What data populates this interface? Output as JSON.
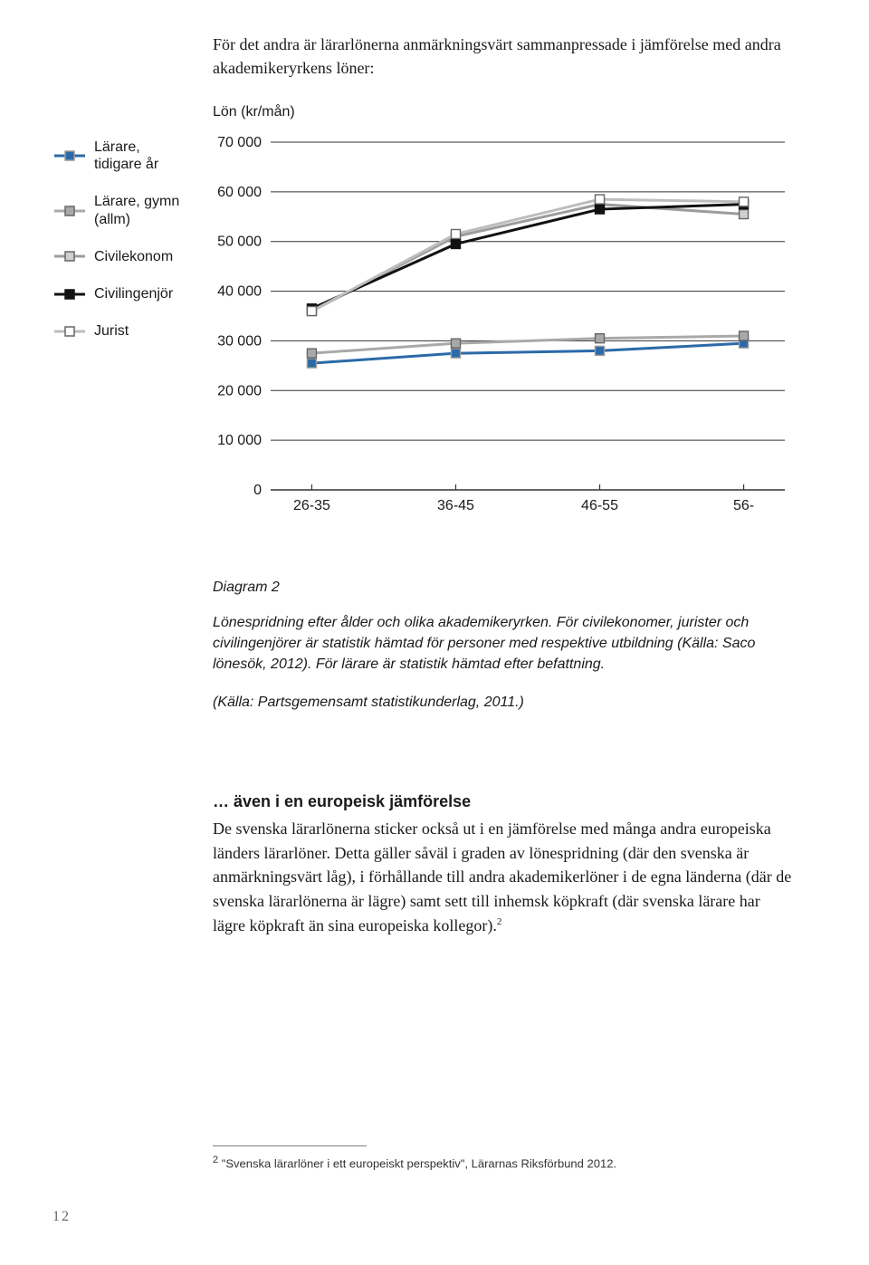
{
  "intro": "För det andra är lärarlönerna anmärkningsvärt sammanpressade i jämförelse med andra akademikeryrkens löner:",
  "chart": {
    "type": "line",
    "y_title": "Lön (kr/mån)",
    "ylim": [
      0,
      70000
    ],
    "ytick_step": 10000,
    "yticks": [
      "70 000",
      "60 000",
      "50 000",
      "40 000",
      "30 000",
      "20 000",
      "10 000",
      "0"
    ],
    "categories": [
      "26-35",
      "36-45",
      "46-55",
      "56-"
    ],
    "background_color": "#ffffff",
    "grid_color": "#333333",
    "axis_color": "#333333",
    "tick_fontsize": 16,
    "series": [
      {
        "name": "Lärare, tidigare år",
        "label": "Lärare,\ntidigare år",
        "color": "#2b6aa8",
        "marker_fill": "#2b6aa8",
        "marker_stroke": "#999999",
        "values": [
          25500,
          27500,
          28000,
          29500
        ]
      },
      {
        "name": "Lärare, gymn (allm)",
        "label": "Lärare, gymn\n(allm)",
        "color": "#a9a9a9",
        "marker_fill": "#a9a9a9",
        "marker_stroke": "#666666",
        "values": [
          27500,
          29500,
          30500,
          31000
        ]
      },
      {
        "name": "Civilekonom",
        "label": "Civilekonom",
        "color": "#9c9c9c",
        "marker_fill": "#cfcfcf",
        "marker_stroke": "#666666",
        "values": [
          36000,
          51000,
          57500,
          55500
        ]
      },
      {
        "name": "Civilingenjör",
        "label": "Civilingenjör",
        "color": "#111111",
        "marker_fill": "#111111",
        "marker_stroke": "#111111",
        "values": [
          36500,
          49500,
          56500,
          57500
        ]
      },
      {
        "name": "Jurist",
        "label": "Jurist",
        "color": "#bdbdbd",
        "marker_fill": "#ffffff",
        "marker_stroke": "#666666",
        "values": [
          36000,
          51500,
          58500,
          58000
        ]
      }
    ],
    "caption_title": "Diagram 2",
    "caption_body": "Lönespridning efter ålder och olika akademikeryrken. För civilekonomer, jurister och civilingenjörer är statistik hämtad för personer med respektive utbildning (Källa: Saco lönesök, 2012). För lärare är statistik hämtad efter befattning.",
    "caption_source": "(Källa: Partsgemensamt statistikunderlag, 2011.)"
  },
  "section": {
    "subhead": "… även i en europeisk jämförelse",
    "body": "De svenska lärarlönerna sticker också ut i en jämförelse med många andra europeiska länders lärarlöner. Detta gäller såväl i graden av lönespridning (där den svenska är anmärkningsvärt låg), i förhållande till andra akademikerlöner i de egna länderna (där de svenska lärarlönerna är lägre) samt sett till inhemsk köpkraft (där svenska lärare har lägre köpkraft än sina europeiska kollegor).",
    "footnote_mark": "2"
  },
  "footnote": {
    "mark": "2",
    "text": "\"Svenska lärarlöner i ett europeiskt perspektiv\", Lärarnas Riksförbund 2012."
  },
  "page_number": "12"
}
